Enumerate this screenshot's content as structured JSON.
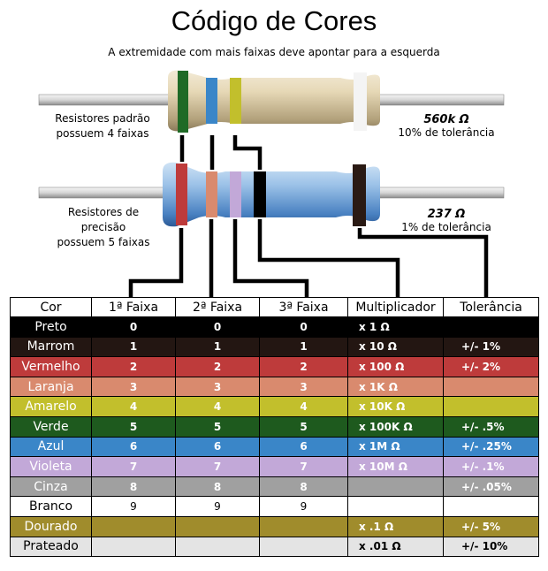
{
  "title": "Código de Cores",
  "subtitle": "A extremidade com mais faixas deve apontar para a esquerda",
  "resistor4": {
    "label_line1": "Resistores padrão",
    "label_line2": "possuem 4 faixas",
    "value": "560k Ω",
    "tolerance": "10% de tolerância"
  },
  "resistor5": {
    "label_line1": "Resistores de precisão",
    "label_line2": "possuem 5 faixas",
    "value": "237 Ω",
    "tolerance": "1% de tolerância"
  },
  "table": {
    "headers": [
      "Cor",
      "1ª Faixa",
      "2ª Faixa",
      "3ª Faixa",
      "Multiplicador",
      "Tolerância"
    ],
    "rows": [
      {
        "name": "Preto",
        "d1": "0",
        "d2": "0",
        "d3": "0",
        "mult": "x 1 Ω",
        "tol": "",
        "bg": "#000000",
        "dark": true
      },
      {
        "name": "Marrom",
        "d1": "1",
        "d2": "1",
        "d3": "1",
        "mult": "x 10 Ω",
        "tol": "+/-  1%",
        "bg": "#231612",
        "dark": true
      },
      {
        "name": "Vermelho",
        "d1": "2",
        "d2": "2",
        "d3": "2",
        "mult": "x 100 Ω",
        "tol": "+/-  2%",
        "bg": "#be3b3b",
        "dark": true
      },
      {
        "name": "Laranja",
        "d1": "3",
        "d2": "3",
        "d3": "3",
        "mult": "x 1K Ω",
        "tol": "",
        "bg": "#d98a6e",
        "dark": true
      },
      {
        "name": "Amarelo",
        "d1": "4",
        "d2": "4",
        "d3": "4",
        "mult": "x 10K Ω",
        "tol": "",
        "bg": "#c2bf2c",
        "dark": true
      },
      {
        "name": "Verde",
        "d1": "5",
        "d2": "5",
        "d3": "5",
        "mult": "x 100K Ω",
        "tol": "+/-  .5%",
        "bg": "#1e5a1e",
        "dark": true
      },
      {
        "name": "Azul",
        "d1": "6",
        "d2": "6",
        "d3": "6",
        "mult": "x 1M Ω",
        "tol": "+/-  .25%",
        "bg": "#3a86c8",
        "dark": true
      },
      {
        "name": "Violeta",
        "d1": "7",
        "d2": "7",
        "d3": "7",
        "mult": "x 10M Ω",
        "tol": "+/-  .1%",
        "bg": "#c2a8d8",
        "dark": true
      },
      {
        "name": "Cinza",
        "d1": "8",
        "d2": "8",
        "d3": "8",
        "mult": "",
        "tol": "+/-  .05%",
        "bg": "#a0a0a0",
        "dark": true
      },
      {
        "name": "Branco",
        "d1": "9",
        "d2": "9",
        "d3": "9",
        "mult": "",
        "tol": "",
        "bg": "#ffffff",
        "dark": false
      },
      {
        "name": "Dourado",
        "d1": "",
        "d2": "",
        "d3": "",
        "mult": "x .1 Ω",
        "tol": "+/-  5%",
        "bg": "#a08c2c",
        "dark": true
      },
      {
        "name": "Prateado",
        "d1": "",
        "d2": "",
        "d3": "",
        "mult": "x .01 Ω",
        "tol": "+/-  10%",
        "bg": "#e4e4e4",
        "dark": false
      }
    ]
  }
}
